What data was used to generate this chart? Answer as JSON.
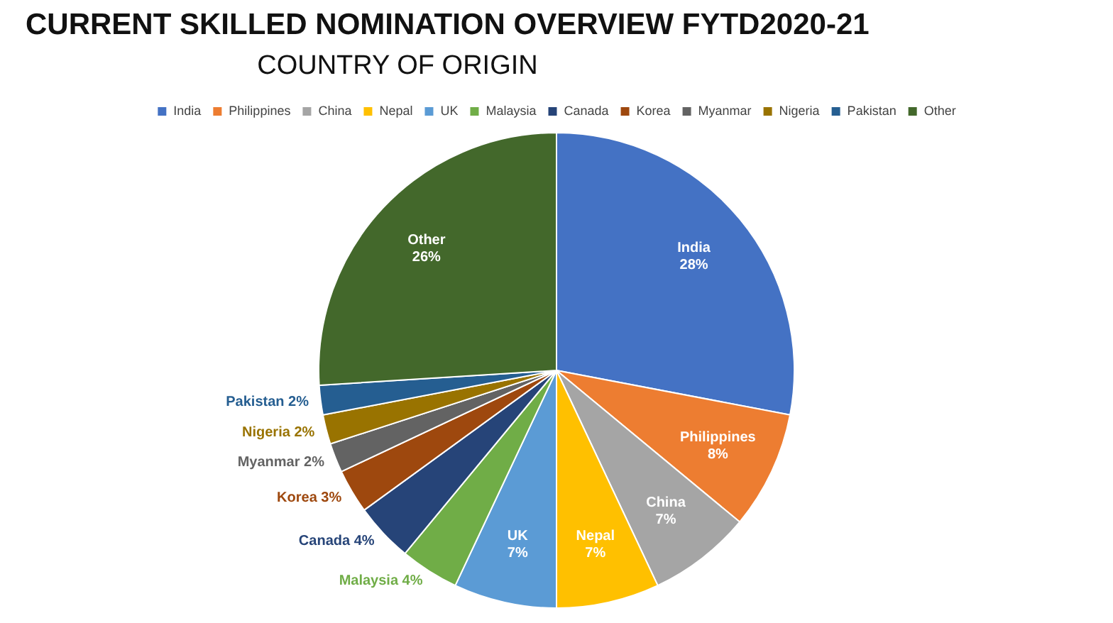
{
  "chart_data": {
    "type": "pie",
    "title": "CURRENT SKILLED NOMINATION OVERVIEW FYTD2020-21",
    "subtitle": "COUNTRY OF ORIGIN",
    "categories": [
      "India",
      "Philippines",
      "China",
      "Nepal",
      "UK",
      "Malaysia",
      "Canada",
      "Korea",
      "Myanmar",
      "Nigeria",
      "Pakistan",
      "Other"
    ],
    "values": [
      28,
      8,
      7,
      7,
      7,
      4,
      4,
      3,
      2,
      2,
      2,
      26
    ],
    "colors": [
      "#4472c4",
      "#ed7d31",
      "#a5a5a5",
      "#ffc000",
      "#5b9bd5",
      "#70ad47",
      "#264478",
      "#9e480e",
      "#636363",
      "#997300",
      "#255e91",
      "#43682b"
    ],
    "value_labels": [
      "28%",
      "8%",
      "7%",
      "7%",
      "7%",
      "4%",
      "4%",
      "3%",
      "2%",
      "2%",
      "2%",
      "26%"
    ],
    "legend": "top"
  }
}
